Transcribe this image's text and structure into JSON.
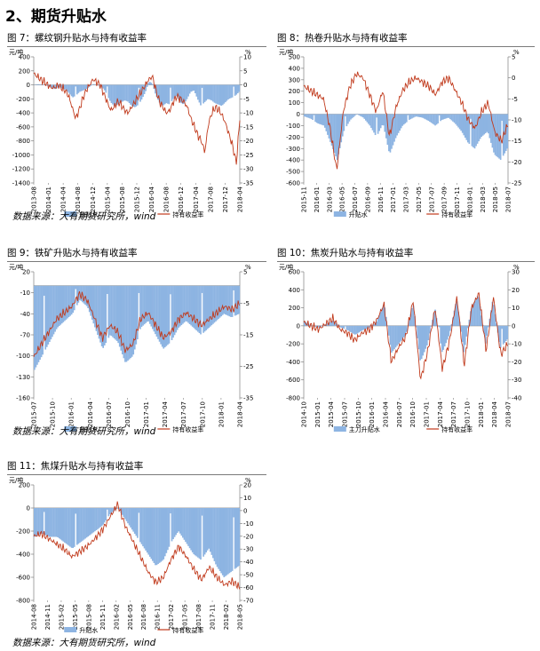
{
  "section_title": "2、期货升贴水",
  "source_note": "数据来源：大有期货研究所，wind",
  "colors": {
    "bar": "#8db4e2",
    "line": "#c0391b",
    "axis": "#808080"
  },
  "chart_data": [
    {
      "id": "fig7",
      "type": "bar+line",
      "title": "图 7：螺纹钢升贴水与持有收益率",
      "left_unit": "元/吨",
      "right_unit": "%",
      "left_ticks": [
        400,
        200,
        0,
        -200,
        -400,
        -600,
        -800,
        -1000,
        -1200,
        -1400
      ],
      "right_ticks": [
        10,
        5,
        0,
        -5,
        -10,
        -15,
        -20,
        -25,
        -30,
        -35
      ],
      "x_ticks": [
        "2013-08",
        "2014-01",
        "2014-04",
        "2014-08",
        "2014-12",
        "2015-04",
        "2015-08",
        "2015-12",
        "2016-04",
        "2016-08",
        "2016-12",
        "2017-04",
        "2017-08",
        "2017-12",
        "2018-04"
      ],
      "series": [
        {
          "name": "升贴水",
          "axis": "left",
          "kind": "bar",
          "values": [
            0,
            10,
            5,
            0,
            -20,
            -40,
            -60,
            -30,
            -50,
            -70,
            -120,
            -180,
            -150,
            -100,
            -80,
            -60,
            -20,
            10,
            0,
            -20,
            -60,
            -150,
            -250,
            -300,
            -280,
            -250,
            -220,
            -240,
            -300,
            -320,
            -280,
            -200,
            -100,
            50,
            20,
            -150,
            -250,
            -300,
            -260,
            -280,
            -200,
            -150,
            -250,
            -280,
            -200,
            -100,
            -80,
            -200,
            -300,
            -250,
            -200,
            -220,
            -260,
            -280,
            -300,
            -250,
            -200,
            -180,
            -150,
            -100
          ]
        },
        {
          "name": "持有收益率",
          "axis": "right",
          "kind": "line",
          "values": [
            4,
            3,
            2,
            1,
            0,
            -1,
            -1,
            0,
            -1,
            -2,
            -4,
            -8,
            -12,
            -9,
            -5,
            -2,
            0,
            2,
            1,
            0,
            -3,
            -6,
            -9,
            -8,
            -6,
            -7,
            -9,
            -10,
            -8,
            -6,
            -4,
            -2,
            0,
            2,
            3,
            -2,
            -6,
            -8,
            -10,
            -9,
            -6,
            -4,
            -5,
            -6,
            -8,
            -12,
            -15,
            -18,
            -20,
            -24,
            -14,
            -10,
            -8,
            -9,
            -11,
            -14,
            -18,
            -22,
            -28,
            -12
          ]
        }
      ]
    },
    {
      "id": "fig8",
      "type": "bar+line",
      "title": "图 8：热卷升贴水与持有收益率",
      "left_unit": "元/吨",
      "right_unit": "%",
      "left_ticks": [
        500,
        400,
        300,
        200,
        100,
        0,
        -100,
        -200,
        -300,
        -400,
        -500,
        -600
      ],
      "right_ticks": [
        5,
        0,
        -5,
        -10,
        -15,
        -20,
        -25
      ],
      "x_ticks": [
        "2015-11",
        "2016-01",
        "2016-03",
        "2016-05",
        "2016-07",
        "2016-09",
        "2016-11",
        "2017-01",
        "2017-03",
        "2017-05",
        "2017-07",
        "2017-09",
        "2017-11",
        "2018-01",
        "2018-03",
        "2018-05",
        "2018-07"
      ],
      "series": [
        {
          "name": "升贴水",
          "axis": "left",
          "kind": "bar",
          "values": [
            -20,
            -40,
            -80,
            -100,
            -250,
            -400,
            -150,
            -50,
            0,
            -30,
            -100,
            -200,
            -80,
            -350,
            -200,
            -100,
            -50,
            -20,
            -30,
            -60,
            -100,
            -50,
            -30,
            -80,
            -150,
            -250,
            -300,
            -200,
            -150,
            -350,
            -400,
            -300
          ]
        },
        {
          "name": "持有收益率",
          "axis": "right",
          "kind": "line",
          "values": [
            -2,
            -3,
            -4,
            -5,
            -12,
            -22,
            -8,
            -2,
            1,
            0,
            -4,
            -8,
            -3,
            -14,
            -7,
            -3,
            -1,
            0,
            -1,
            -2,
            -4,
            -1,
            0,
            -3,
            -6,
            -10,
            -12,
            -8,
            -6,
            -13,
            -15,
            -11
          ]
        }
      ]
    },
    {
      "id": "fig9",
      "type": "bar+line",
      "title": "图 9：铁矿升贴水与持有收益率",
      "left_unit": "元/吨",
      "right_unit": "%",
      "left_ticks": [
        20,
        -10,
        -40,
        -70,
        -100,
        -130,
        -160
      ],
      "right_ticks": [
        5,
        -5,
        -15,
        -25,
        -35
      ],
      "x_ticks": [
        "2015-07",
        "2015-10",
        "2016-01",
        "2016-04",
        "2016-07",
        "2016-10",
        "2017-01",
        "2017-04",
        "2017-07",
        "2017-10",
        "2018-01",
        "2018-04"
      ],
      "series": [
        {
          "name": "升贴水",
          "axis": "left",
          "kind": "bar",
          "values": [
            -120,
            -100,
            -80,
            -60,
            -50,
            -40,
            -20,
            -30,
            -60,
            -90,
            -70,
            -80,
            -110,
            -100,
            -60,
            -50,
            -70,
            -90,
            -80,
            -60,
            -50,
            -60,
            -70,
            -60,
            -50,
            -40,
            -45,
            -40
          ]
        },
        {
          "name": "持有收益率",
          "axis": "right",
          "kind": "line",
          "values": [
            -22,
            -18,
            -14,
            -10,
            -8,
            -6,
            -2,
            -4,
            -10,
            -16,
            -12,
            -14,
            -20,
            -18,
            -10,
            -8,
            -12,
            -16,
            -14,
            -10,
            -8,
            -10,
            -12,
            -10,
            -8,
            -6,
            -7,
            -5
          ]
        }
      ]
    },
    {
      "id": "fig10",
      "type": "bar+line",
      "title": "图 10：焦炭升贴水与持有收益率",
      "left_unit": "元/吨",
      "right_unit": "%",
      "left_ticks": [
        600,
        400,
        200,
        0,
        -200,
        -400,
        -600,
        -800
      ],
      "right_ticks": [
        30,
        20,
        10,
        0,
        -10,
        -20,
        -30,
        -40
      ],
      "x_ticks": [
        "2014-10",
        "2015-01",
        "2015-04",
        "2015-07",
        "2015-10",
        "2016-01",
        "2016-04",
        "2016-07",
        "2016-10",
        "2017-01",
        "2017-04",
        "2017-07",
        "2017-10",
        "2018-01",
        "2018-04",
        "2018-07"
      ],
      "series": [
        {
          "name": "主力升贴水",
          "axis": "left",
          "kind": "bar",
          "values": [
            50,
            0,
            -20,
            20,
            60,
            -20,
            -50,
            -100,
            -50,
            -20,
            50,
            250,
            -300,
            -200,
            -100,
            250,
            -400,
            -200,
            200,
            -300,
            -100,
            300,
            -300,
            200,
            350,
            -200,
            300,
            -250,
            -150
          ]
        },
        {
          "name": "持有收益率",
          "axis": "right",
          "kind": "line",
          "values": [
            2,
            0,
            -2,
            1,
            4,
            -2,
            -4,
            -8,
            -4,
            -2,
            3,
            12,
            -20,
            -12,
            -6,
            14,
            -30,
            -14,
            10,
            -24,
            -8,
            16,
            -22,
            10,
            18,
            -14,
            16,
            -16,
            -10
          ]
        }
      ]
    },
    {
      "id": "fig11",
      "type": "bar+line",
      "title": "图 11：焦煤升贴水与持有收益率",
      "left_unit": "元/吨",
      "right_unit": "%",
      "left_ticks": [
        200,
        0,
        -200,
        -400,
        -600,
        -800
      ],
      "right_ticks": [
        20,
        10,
        0,
        -10,
        -20,
        -30,
        -40,
        -50,
        -60,
        -70
      ],
      "x_ticks": [
        "2014-08",
        "2014-11",
        "2015-02",
        "2015-05",
        "2015-08",
        "2015-11",
        "2016-02",
        "2016-05",
        "2016-08",
        "2016-11",
        "2017-02",
        "2017-05",
        "2017-08",
        "2017-11",
        "2018-02",
        "2018-05"
      ],
      "series": [
        {
          "name": "升贴水",
          "axis": "left",
          "kind": "bar",
          "values": [
            -250,
            -220,
            -250,
            -250,
            -300,
            -350,
            -300,
            -250,
            -200,
            -150,
            -50,
            0,
            -100,
            -200,
            -300,
            -400,
            -500,
            -450,
            -300,
            -200,
            -300,
            -400,
            -450,
            -350,
            -500,
            -600,
            -550,
            -500
          ]
        },
        {
          "name": "持有收益率",
          "axis": "right",
          "kind": "line",
          "values": [
            -20,
            -18,
            -22,
            -26,
            -30,
            -36,
            -32,
            -28,
            -22,
            -15,
            -5,
            5,
            -12,
            -24,
            -36,
            -48,
            -56,
            -52,
            -38,
            -28,
            -36,
            -46,
            -54,
            -44,
            -52,
            -58,
            -55,
            -60
          ]
        }
      ]
    }
  ]
}
